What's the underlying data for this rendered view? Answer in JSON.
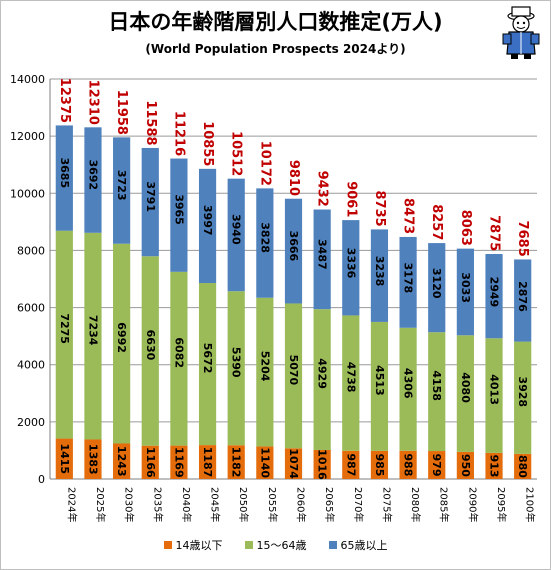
{
  "title": "日本の年齢階層別人口数推定(万人)",
  "subtitle": "(World Population Prospects 2024より)",
  "chart_data": {
    "type": "bar",
    "stacked": true,
    "title": "日本の年齢階層別人口数推定(万人)",
    "subtitle": "(World Population Prospects 2024より)",
    "categories": [
      "2024年",
      "2025年",
      "2030年",
      "2035年",
      "2040年",
      "2045年",
      "2050年",
      "2055年",
      "2060年",
      "2065年",
      "2070年",
      "2075年",
      "2080年",
      "2085年",
      "2090年",
      "2095年",
      "2100年"
    ],
    "series": [
      {
        "name": "14歳以下",
        "color": "#e46c0a",
        "values": [
          1415,
          1383,
          1243,
          1166,
          1169,
          1187,
          1182,
          1140,
          1074,
          1016,
          987,
          985,
          988,
          979,
          950,
          913,
          880
        ]
      },
      {
        "name": "15〜64歳",
        "color": "#9bbb59",
        "values": [
          7275,
          7234,
          6992,
          6630,
          6082,
          5672,
          5390,
          5204,
          5070,
          4929,
          4738,
          4513,
          4306,
          4158,
          4080,
          4013,
          3928
        ]
      },
      {
        "name": "65歳以上",
        "color": "#4f81bd",
        "values": [
          3685,
          3692,
          3723,
          3791,
          3965,
          3997,
          3940,
          3828,
          3666,
          3487,
          3336,
          3238,
          3178,
          3120,
          3033,
          2949,
          2876
        ]
      }
    ],
    "totals": [
      12375,
      12310,
      11958,
      11588,
      11216,
      10855,
      10512,
      10172,
      9810,
      9432,
      9061,
      8735,
      8473,
      8257,
      8063,
      7875,
      7685
    ],
    "ylim": [
      0,
      14000
    ],
    "yticks": [
      "0",
      "2000",
      "4000",
      "6000",
      "8000",
      "10000",
      "12000",
      "14000"
    ],
    "grid": true,
    "legend": "bottom",
    "total_label_color": "#c00000"
  }
}
